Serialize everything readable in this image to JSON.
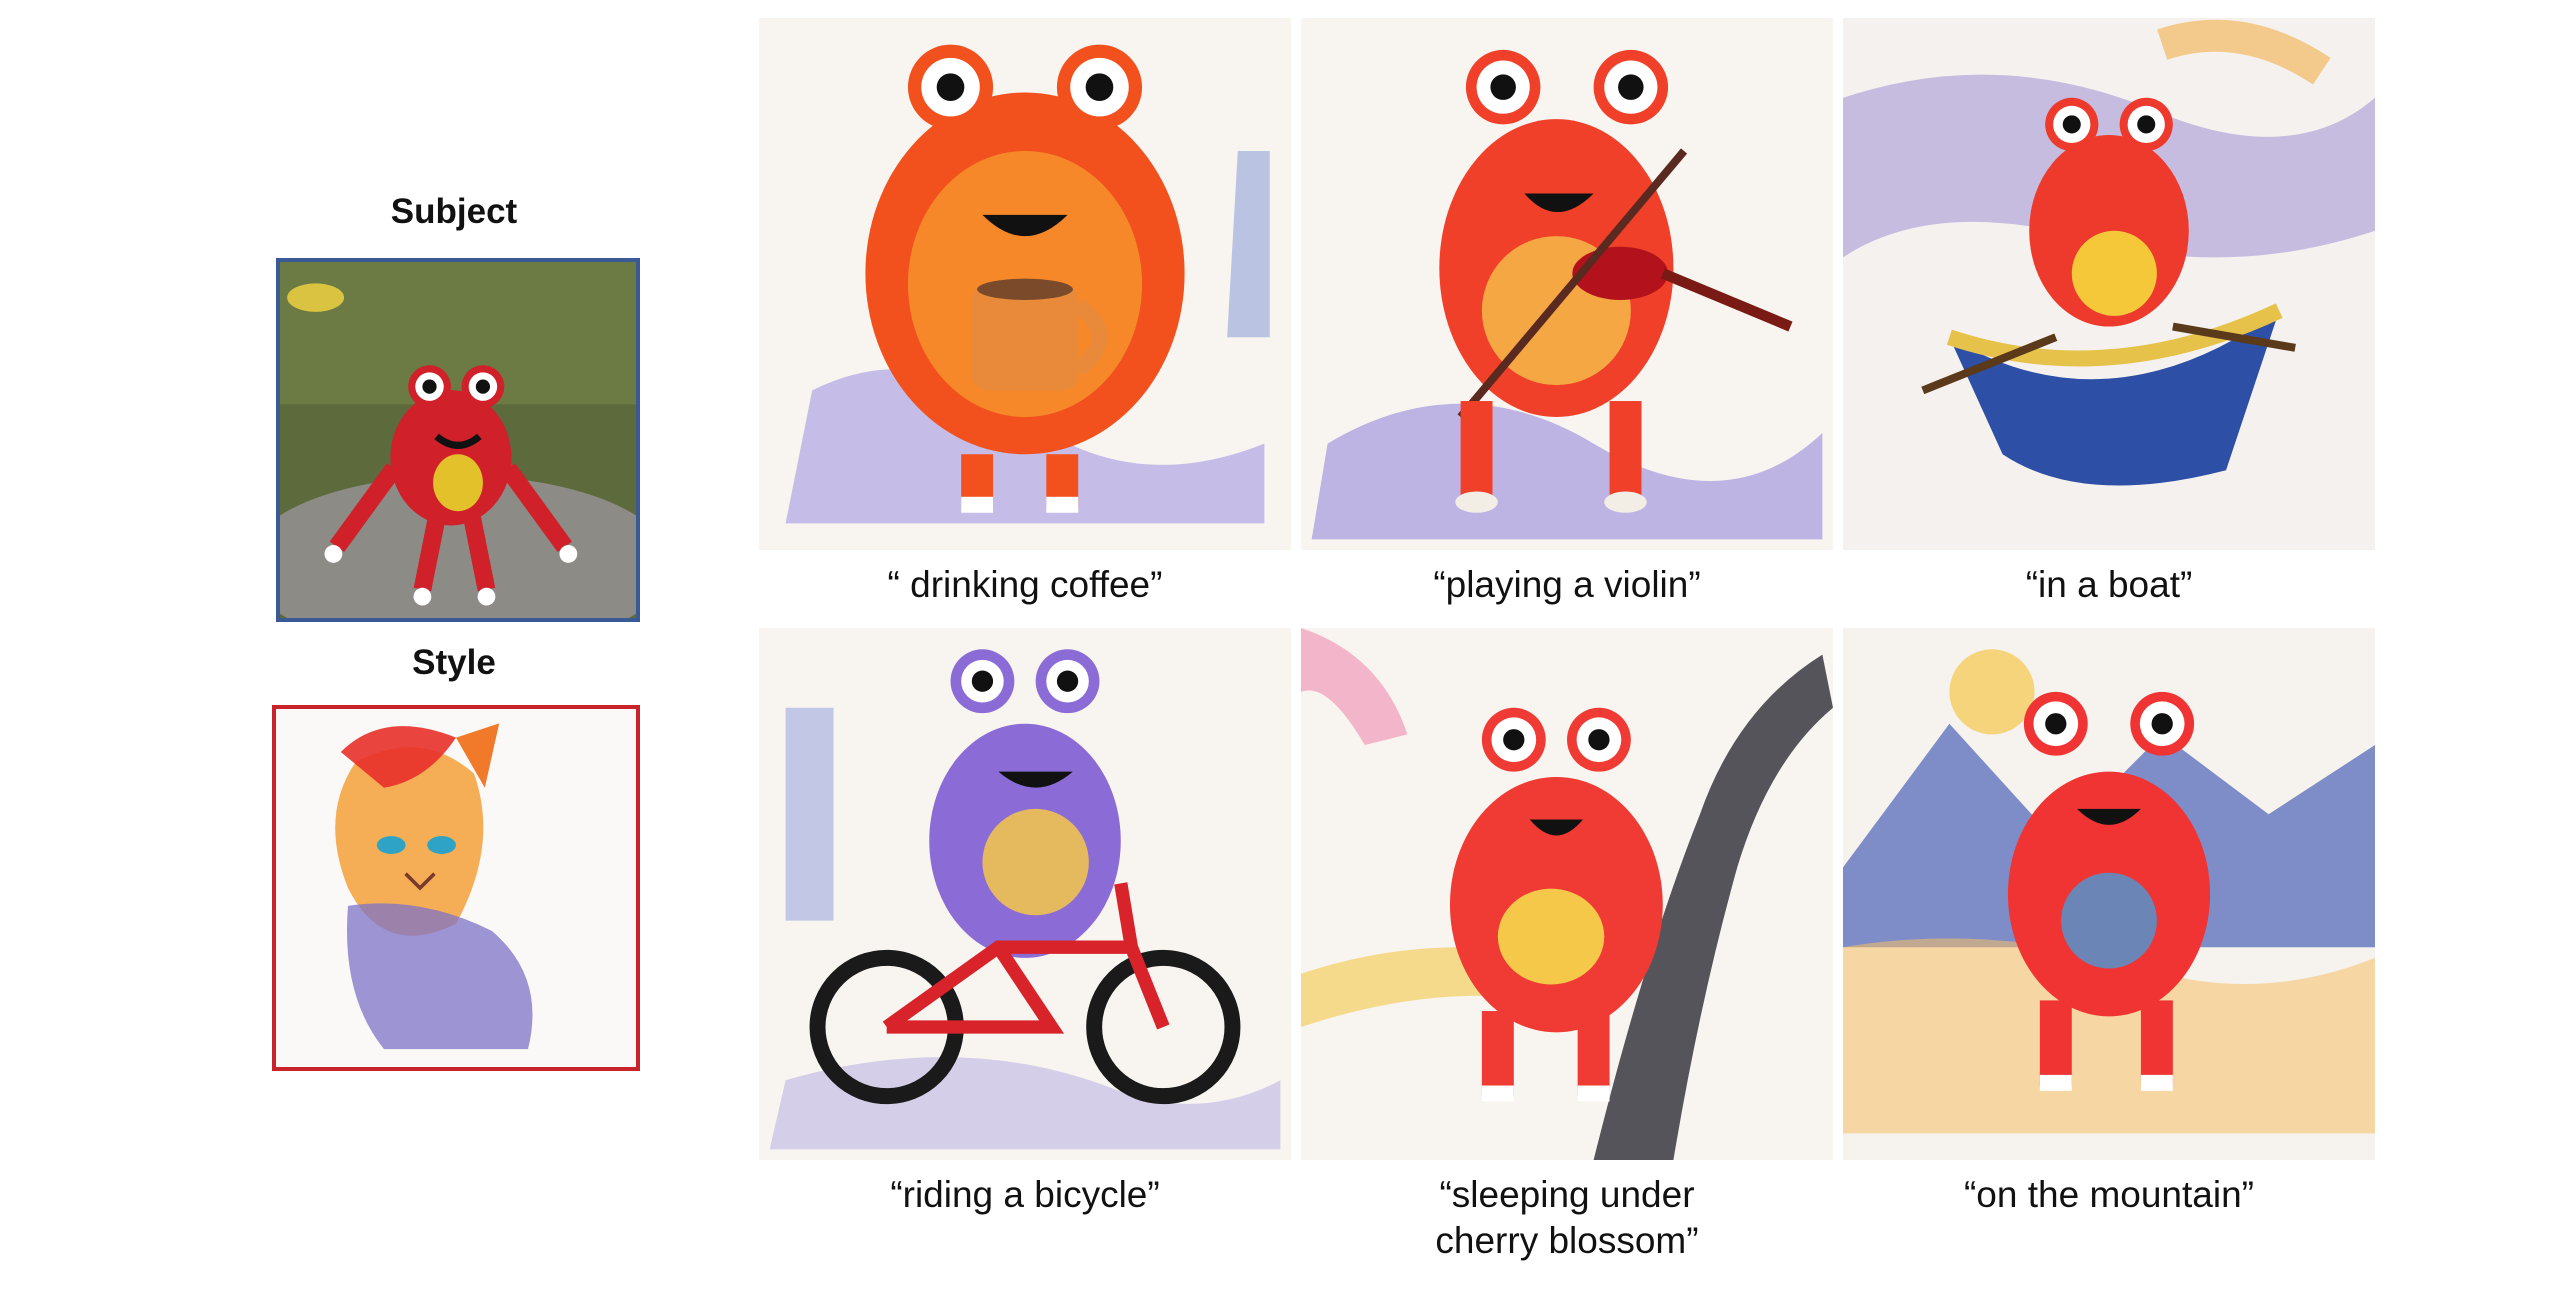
{
  "left_panel": {
    "subject_label": "Subject",
    "style_label": "Style",
    "subject_border_color": "#3a5a96",
    "style_border_color": "#c8232a"
  },
  "grid": [
    {
      "caption": "“ drinking coffee”",
      "monster_color": "#f2511e",
      "prop": "coffee-mug"
    },
    {
      "caption": "“playing a violin”",
      "monster_color": "#f0402a",
      "prop": "violin"
    },
    {
      "caption": "“in a boat”",
      "monster_color": "#ee3a2c",
      "prop": "boat"
    },
    {
      "caption": "“riding a bicycle”",
      "monster_color": "#8b6cd6",
      "prop": "bicycle"
    },
    {
      "caption": "“sleeping under\ncherry blossom”",
      "monster_color": "#f03b35",
      "prop": "cherry-tree"
    },
    {
      "caption": "“on the mountain”",
      "monster_color": "#ef3433",
      "prop": "mountains"
    }
  ]
}
